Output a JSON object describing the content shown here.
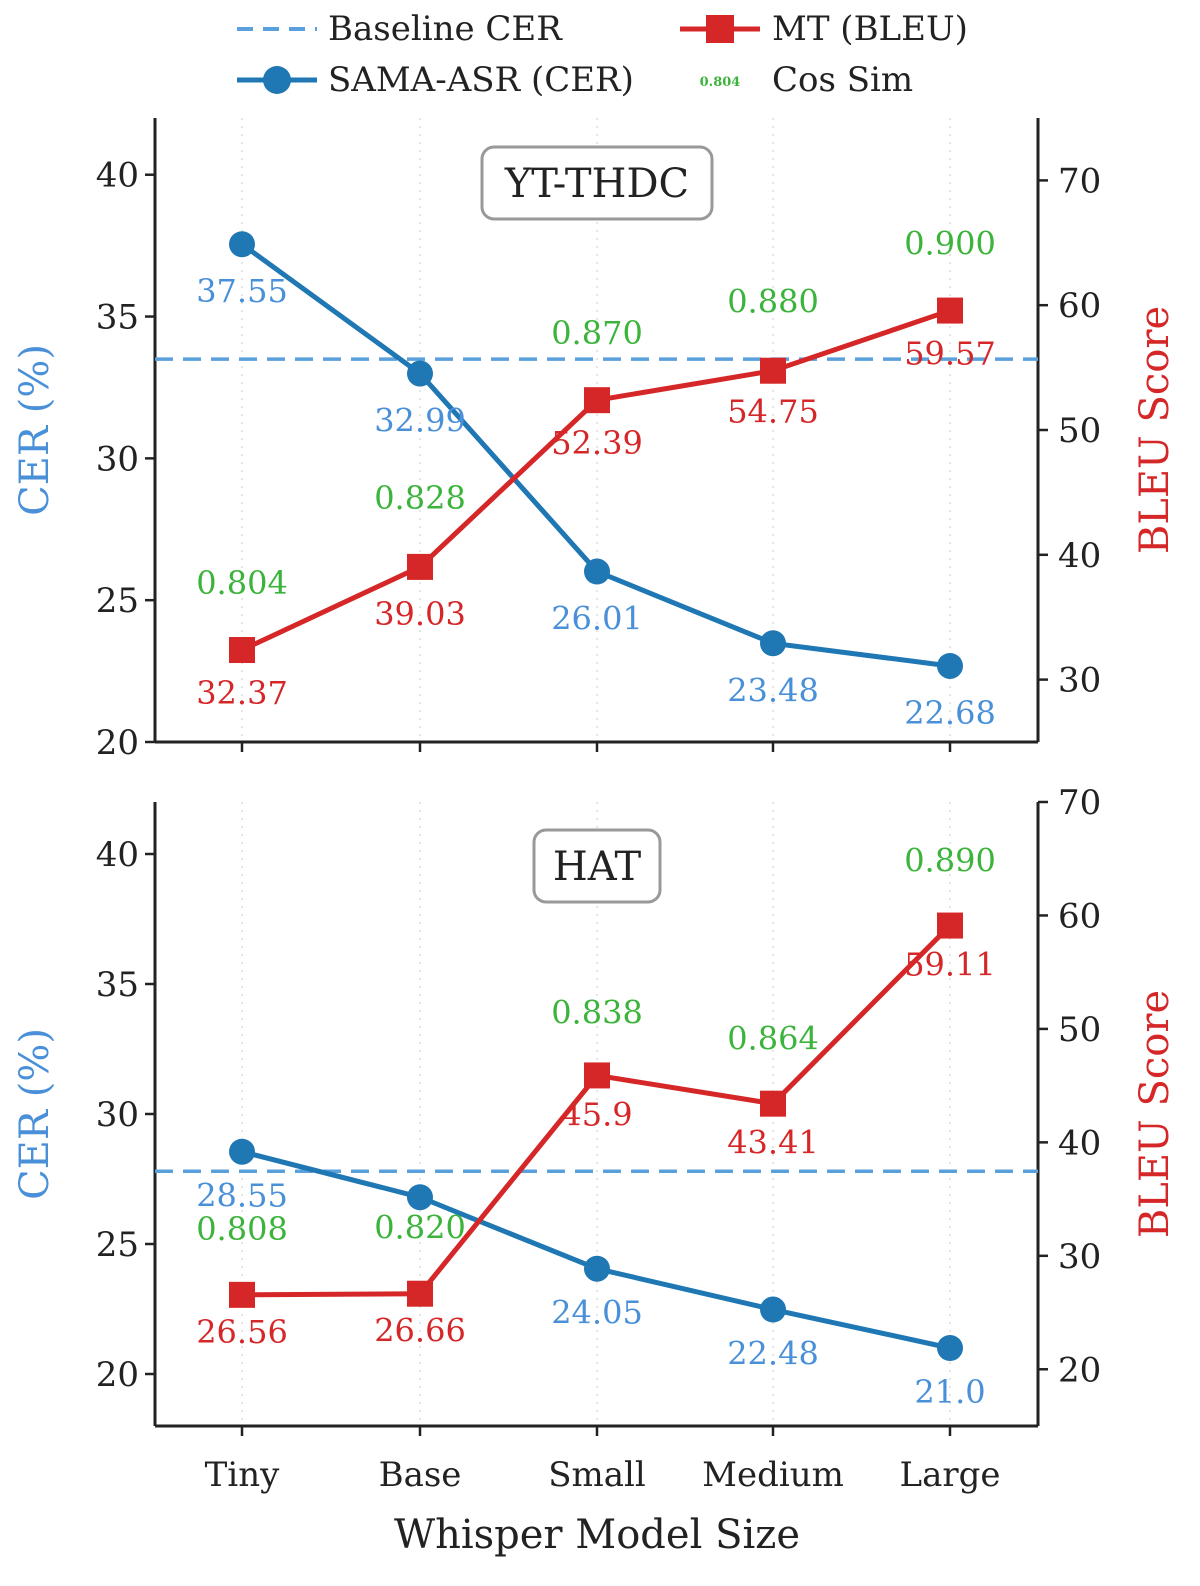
{
  "colors": {
    "cer": "#1f77b4",
    "cer_label": "#4a90d9",
    "baseline": "#5aa0dc",
    "bleu": "#d62728",
    "cos": "#3cb43c",
    "axis": "#222222"
  },
  "legend": {
    "placement": "top",
    "items": [
      {
        "key": "baseline",
        "label": "Baseline CER"
      },
      {
        "key": "mt",
        "label": "MT (BLEU)"
      },
      {
        "key": "asr",
        "label": "SAMA-ASR (CER)"
      },
      {
        "key": "cos",
        "label": "Cos Sim",
        "sample": "0.804"
      }
    ]
  },
  "xlabel": "Whisper Model Size",
  "chart_data": [
    {
      "type": "line",
      "panel_title": "YT-THDC",
      "categories": [
        "Tiny",
        "Base",
        "Small",
        "Medium",
        "Large"
      ],
      "y_left": {
        "label": "CER (%)",
        "lim": [
          20,
          42
        ],
        "ticks": [
          "20",
          "25",
          "30",
          "35",
          "40"
        ]
      },
      "y_right": {
        "label": "BLEU Score",
        "lim": [
          25,
          75
        ],
        "ticks": [
          "30",
          "40",
          "50",
          "60",
          "70"
        ]
      },
      "baseline_cer": 33.5,
      "series": [
        {
          "name": "SAMA-ASR (CER)",
          "axis": "left",
          "values": [
            37.55,
            32.99,
            26.01,
            23.48,
            22.68
          ],
          "labels": [
            "37.55",
            "32.99",
            "26.01",
            "23.48",
            "22.68"
          ]
        },
        {
          "name": "MT (BLEU)",
          "axis": "right",
          "values": [
            32.37,
            39.03,
            52.39,
            54.75,
            59.57
          ],
          "labels": [
            "32.37",
            "39.03",
            "52.39",
            "54.75",
            "59.57"
          ]
        }
      ],
      "cos_sim": [
        "0.804",
        "0.828",
        "0.870",
        "0.880",
        "0.900"
      ]
    },
    {
      "type": "line",
      "panel_title": "HAT",
      "categories": [
        "Tiny",
        "Base",
        "Small",
        "Medium",
        "Large"
      ],
      "y_left": {
        "label": "CER (%)",
        "lim": [
          18,
          42
        ],
        "ticks": [
          "20",
          "25",
          "30",
          "35",
          "40"
        ]
      },
      "y_right": {
        "label": "BLEU Score",
        "lim": [
          15,
          70
        ],
        "ticks": [
          "20",
          "30",
          "40",
          "50",
          "60",
          "70"
        ]
      },
      "baseline_cer": 27.8,
      "series": [
        {
          "name": "SAMA-ASR (CER)",
          "axis": "left",
          "values": [
            28.55,
            26.8,
            24.05,
            22.48,
            21.0
          ],
          "labels": [
            "28.55",
            "",
            "24.05",
            "22.48",
            "21.0"
          ]
        },
        {
          "name": "MT (BLEU)",
          "axis": "right",
          "values": [
            26.56,
            26.66,
            45.9,
            43.41,
            59.11
          ],
          "labels": [
            "26.56",
            "26.66",
            "45.9",
            "43.41",
            "59.11"
          ]
        }
      ],
      "cos_sim": [
        "0.808",
        "0.820",
        "0.838",
        "0.864",
        "0.890"
      ]
    }
  ]
}
